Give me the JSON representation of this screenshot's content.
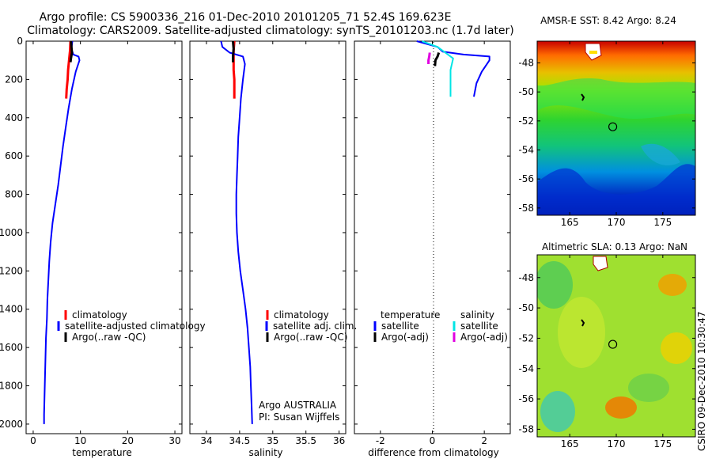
{
  "title": {
    "line1": "Argo profile: CS 5900336_216 01-Dec-2010 20101205_71 52.4S 169.623E",
    "line2": "Climatology: CARS2009. Satellite-adjusted climatology: synTS_20101203.nc (1.7d later)"
  },
  "credit": "CSIRO 09-Dec-2010 10:30:47",
  "panel_annotation": [
    "Argo AUSTRALIA",
    "PI: Susan Wijffels"
  ],
  "colors": {
    "climatology": "#ff0000",
    "satellite": "#0000ff",
    "argo": "#000000",
    "salinity_satellite": "#00e5e5",
    "salinity_argo": "#e000e0"
  },
  "chart_data": [
    {
      "id": "temperature",
      "type": "line",
      "xlabel": "temperature",
      "ylabel": "",
      "xlim": [
        -1.5,
        31.5
      ],
      "ylim": [
        2050,
        0
      ],
      "xticks": [
        0,
        10,
        20,
        30
      ],
      "yticks": [
        0,
        200,
        400,
        600,
        800,
        1000,
        1200,
        1400,
        1600,
        1800,
        2000
      ],
      "legend": [
        "climatology",
        "satellite-adjusted climatology",
        "Argo(..raw -QC)"
      ],
      "series": [
        {
          "name": "climatology",
          "color": "#ff0000",
          "width": 3,
          "points": [
            [
              7.9,
              0
            ],
            [
              7.8,
              50
            ],
            [
              7.6,
              100
            ],
            [
              7.4,
              150
            ],
            [
              7.3,
              200
            ],
            [
              7.1,
              250
            ],
            [
              7.0,
              300
            ]
          ]
        },
        {
          "name": "satellite-adjusted climatology",
          "color": "#0000ff",
          "width": 2,
          "points": [
            [
              8.3,
              0
            ],
            [
              8.1,
              40
            ],
            [
              8.5,
              70
            ],
            [
              9.6,
              80
            ],
            [
              9.8,
              100
            ],
            [
              9.0,
              160
            ],
            [
              8.2,
              250
            ],
            [
              7.5,
              350
            ],
            [
              6.9,
              450
            ],
            [
              6.3,
              550
            ],
            [
              5.8,
              650
            ],
            [
              5.3,
              750
            ],
            [
              4.7,
              850
            ],
            [
              4.1,
              950
            ],
            [
              3.7,
              1050
            ],
            [
              3.4,
              1150
            ],
            [
              3.2,
              1250
            ],
            [
              3.0,
              1350
            ],
            [
              2.9,
              1450
            ],
            [
              2.7,
              1550
            ],
            [
              2.6,
              1650
            ],
            [
              2.5,
              1750
            ],
            [
              2.4,
              1850
            ],
            [
              2.3,
              1950
            ],
            [
              2.3,
              2000
            ]
          ]
        },
        {
          "name": "Argo(..raw -QC)",
          "color": "#000000",
          "width": 3,
          "points": [
            [
              8.0,
              0
            ],
            [
              8.1,
              30
            ],
            [
              8.2,
              60
            ],
            [
              8.0,
              90
            ],
            [
              7.9,
              110
            ]
          ]
        }
      ]
    },
    {
      "id": "salinity",
      "type": "line",
      "xlabel": "salinity",
      "ylabel": "",
      "xlim": [
        33.75,
        36.1
      ],
      "ylim": [
        2050,
        0
      ],
      "xticks": [
        34,
        34.5,
        35,
        35.5,
        36
      ],
      "yticks": [
        0,
        200,
        400,
        600,
        800,
        1000,
        1200,
        1400,
        1600,
        1800,
        2000
      ],
      "legend": [
        "climatology",
        "satellite adj. clim.",
        "Argo(..raw -QC)"
      ],
      "series": [
        {
          "name": "climatology",
          "color": "#ff0000",
          "width": 3,
          "points": [
            [
              34.42,
              0
            ],
            [
              34.41,
              50
            ],
            [
              34.41,
              100
            ],
            [
              34.41,
              150
            ],
            [
              34.42,
              200
            ],
            [
              34.42,
              250
            ],
            [
              34.42,
              300
            ]
          ]
        },
        {
          "name": "satellite adj. clim.",
          "color": "#0000ff",
          "width": 2,
          "points": [
            [
              34.22,
              0
            ],
            [
              34.24,
              30
            ],
            [
              34.35,
              60
            ],
            [
              34.55,
              80
            ],
            [
              34.58,
              120
            ],
            [
              34.55,
              200
            ],
            [
              34.52,
              300
            ],
            [
              34.5,
              400
            ],
            [
              34.48,
              500
            ],
            [
              34.47,
              600
            ],
            [
              34.46,
              700
            ],
            [
              34.45,
              800
            ],
            [
              34.45,
              900
            ],
            [
              34.46,
              1000
            ],
            [
              34.48,
              1100
            ],
            [
              34.51,
              1200
            ],
            [
              34.55,
              1300
            ],
            [
              34.59,
              1400
            ],
            [
              34.62,
              1500
            ],
            [
              34.64,
              1600
            ],
            [
              34.66,
              1700
            ],
            [
              34.67,
              1800
            ],
            [
              34.68,
              1900
            ],
            [
              34.69,
              2000
            ]
          ]
        },
        {
          "name": "Argo(..raw -QC)",
          "color": "#000000",
          "width": 3,
          "points": [
            [
              34.4,
              0
            ],
            [
              34.41,
              40
            ],
            [
              34.4,
              80
            ],
            [
              34.4,
              110
            ]
          ]
        }
      ]
    },
    {
      "id": "difference",
      "type": "line",
      "xlabel": "difference from climatology",
      "ylabel": "",
      "xlim": [
        -3,
        3
      ],
      "ylim": [
        2050,
        0
      ],
      "xticks": [
        -2,
        0,
        2
      ],
      "yticks": [
        0,
        200,
        400,
        600,
        800,
        1000,
        1200,
        1400,
        1600,
        1800,
        2000
      ],
      "legend_temperature_header": "temperature",
      "legend_salinity_header": "salinity",
      "legend": [
        "satellite",
        "Argo(-adj)",
        "satellite",
        "Argo(-adj)"
      ],
      "series": [
        {
          "name": "temperature satellite",
          "color": "#0000ff",
          "width": 2,
          "points": [
            [
              -0.6,
              0
            ],
            [
              0.2,
              30
            ],
            [
              0.4,
              55
            ],
            [
              1.2,
              70
            ],
            [
              2.2,
              80
            ],
            [
              2.2,
              100
            ],
            [
              1.9,
              160
            ],
            [
              1.7,
              220
            ],
            [
              1.6,
              290
            ]
          ]
        },
        {
          "name": "salinity satellite",
          "color": "#00e5e5",
          "width": 2,
          "points": [
            [
              -0.4,
              0
            ],
            [
              0.2,
              30
            ],
            [
              0.5,
              60
            ],
            [
              0.8,
              90
            ],
            [
              0.7,
              150
            ],
            [
              0.7,
              220
            ],
            [
              0.7,
              290
            ]
          ]
        },
        {
          "name": "temperature Argo(-adj)",
          "color": "#000000",
          "width": 3,
          "points": [
            [
              0.25,
              60
            ],
            [
              0.2,
              80
            ],
            [
              0.12,
              100
            ],
            [
              0.1,
              130
            ]
          ]
        },
        {
          "name": "salinity Argo(-adj)",
          "color": "#e000e0",
          "width": 3,
          "points": [
            [
              -0.1,
              60
            ],
            [
              -0.12,
              80
            ],
            [
              -0.15,
              100
            ],
            [
              -0.15,
              120
            ]
          ]
        }
      ]
    },
    {
      "id": "sst-map",
      "type": "heatmap",
      "title": "AMSR-E SST: 8.42 Argo: 8.24",
      "xlim": [
        161.5,
        178.5
      ],
      "ylim": [
        -58.5,
        -46.5
      ],
      "xticks": [
        165,
        170,
        175
      ],
      "yticks": [
        -48,
        -50,
        -52,
        -54,
        -56,
        -58
      ],
      "marker": {
        "lon": 169.623,
        "lat": -52.4
      }
    },
    {
      "id": "sla-map",
      "type": "heatmap",
      "title": "Altimetric SLA: 0.13 Argo: NaN",
      "xlim": [
        161.5,
        178.5
      ],
      "ylim": [
        -58.5,
        -46.5
      ],
      "xticks": [
        165,
        170,
        175
      ],
      "yticks": [
        -48,
        -50,
        -52,
        -54,
        -56,
        -58
      ],
      "marker": {
        "lon": 169.623,
        "lat": -52.4
      }
    }
  ]
}
